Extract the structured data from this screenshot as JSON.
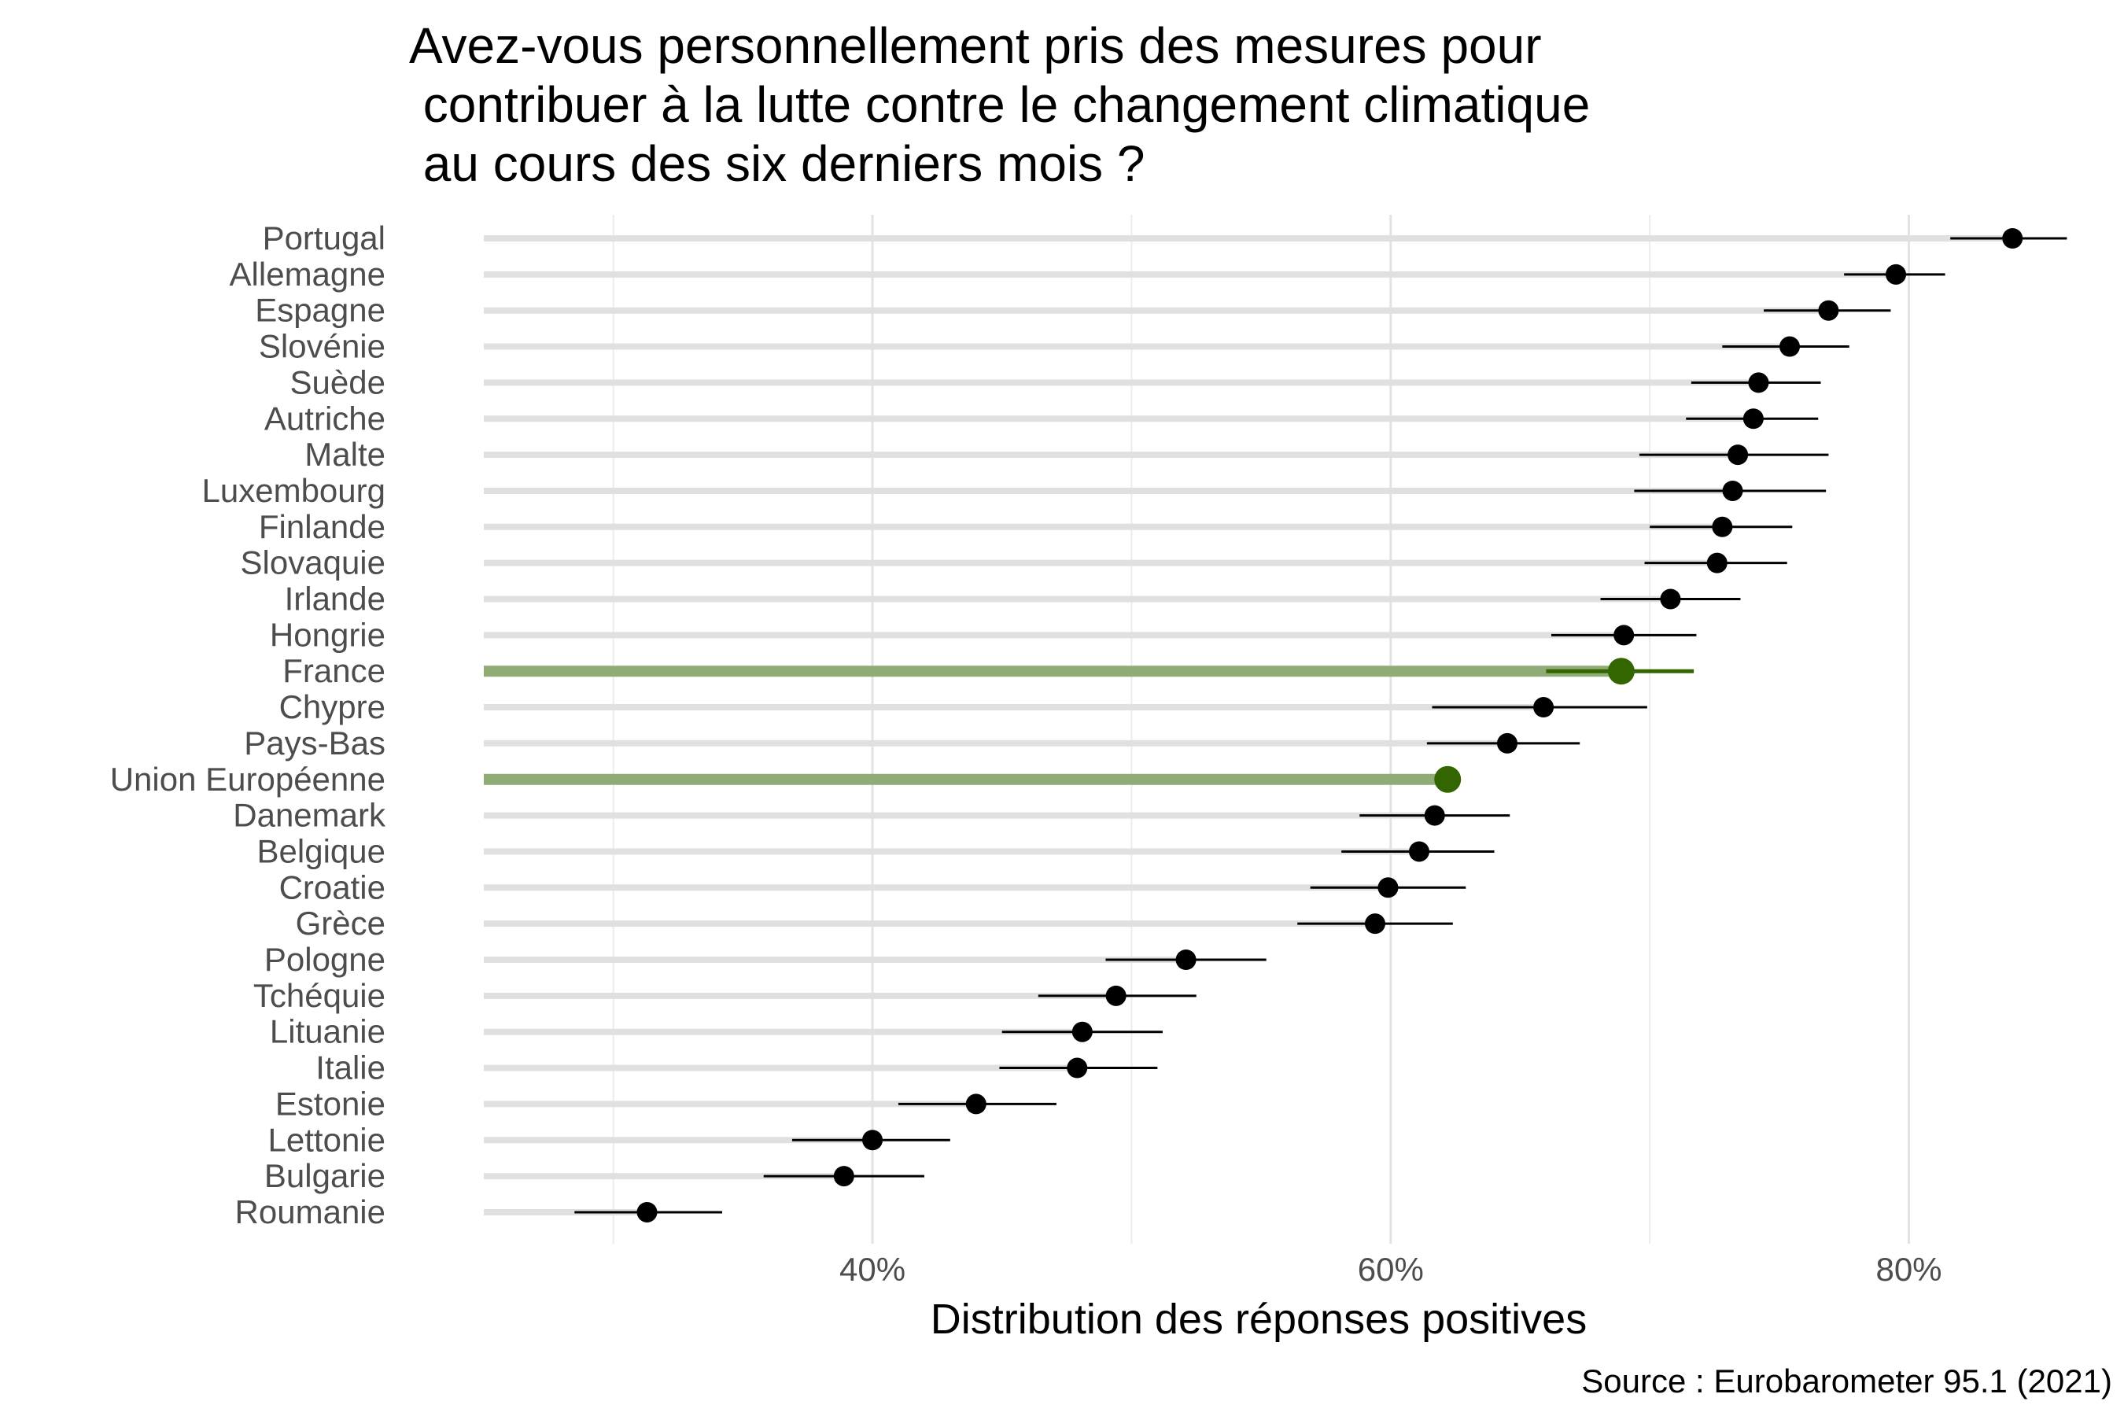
{
  "chart_data": {
    "type": "dot-errorbar",
    "title_lines": [
      "Avez-vous personnellement pris des mesures pour",
      " contribuer à la lutte contre le changement climatique",
      " au cours des six derniers mois ?"
    ],
    "xlabel": "Distribution des réponses positives",
    "caption": "Source : Eurobarometer 95.1 (2021)",
    "x_ticks": [
      {
        "value": 40,
        "label": "40%"
      },
      {
        "value": 60,
        "label": "60%"
      },
      {
        "value": 80,
        "label": "80%"
      }
    ],
    "xlim": [
      25,
      88
    ],
    "grid": true,
    "highlight_color": "#336600",
    "highlight_bar_color": "#8fac76",
    "point_color": "#000000",
    "track_color": "#e0e0e0",
    "categories": [
      {
        "name": "Portugal",
        "value": 84.0,
        "low": 81.6,
        "high": 86.1
      },
      {
        "name": "Allemagne",
        "value": 79.5,
        "low": 77.5,
        "high": 81.4
      },
      {
        "name": "Espagne",
        "value": 76.9,
        "low": 74.4,
        "high": 79.3
      },
      {
        "name": "Slovénie",
        "value": 75.4,
        "low": 72.8,
        "high": 77.7
      },
      {
        "name": "Suède",
        "value": 74.2,
        "low": 71.6,
        "high": 76.6
      },
      {
        "name": "Autriche",
        "value": 74.0,
        "low": 71.4,
        "high": 76.5
      },
      {
        "name": "Malte",
        "value": 73.4,
        "low": 69.6,
        "high": 76.9
      },
      {
        "name": "Luxembourg",
        "value": 73.2,
        "low": 69.4,
        "high": 76.8
      },
      {
        "name": "Finlande",
        "value": 72.8,
        "low": 70.0,
        "high": 75.5
      },
      {
        "name": "Slovaquie",
        "value": 72.6,
        "low": 69.8,
        "high": 75.3
      },
      {
        "name": "Irlande",
        "value": 70.8,
        "low": 68.1,
        "high": 73.5
      },
      {
        "name": "Hongrie",
        "value": 69.0,
        "low": 66.2,
        "high": 71.8
      },
      {
        "name": "France",
        "value": 68.9,
        "low": 66.0,
        "high": 71.7,
        "highlight": true
      },
      {
        "name": "Chypre",
        "value": 65.9,
        "low": 61.6,
        "high": 69.9
      },
      {
        "name": "Pays-Bas",
        "value": 64.5,
        "low": 61.4,
        "high": 67.3
      },
      {
        "name": "Union Européenne",
        "value": 62.2,
        "highlight": true
      },
      {
        "name": "Danemark",
        "value": 61.7,
        "low": 58.8,
        "high": 64.6
      },
      {
        "name": "Belgique",
        "value": 61.1,
        "low": 58.1,
        "high": 64.0
      },
      {
        "name": "Croatie",
        "value": 59.9,
        "low": 56.9,
        "high": 62.9
      },
      {
        "name": "Grèce",
        "value": 59.4,
        "low": 56.4,
        "high": 62.4
      },
      {
        "name": "Pologne",
        "value": 52.1,
        "low": 49.0,
        "high": 55.2
      },
      {
        "name": "Tchéquie",
        "value": 49.4,
        "low": 46.4,
        "high": 52.5
      },
      {
        "name": "Lituanie",
        "value": 48.1,
        "low": 45.0,
        "high": 51.2
      },
      {
        "name": "Italie",
        "value": 47.9,
        "low": 44.9,
        "high": 51.0
      },
      {
        "name": "Estonie",
        "value": 44.0,
        "low": 41.0,
        "high": 47.1
      },
      {
        "name": "Lettonie",
        "value": 40.0,
        "low": 36.9,
        "high": 43.0
      },
      {
        "name": "Bulgarie",
        "value": 38.9,
        "low": 35.8,
        "high": 42.0
      },
      {
        "name": "Roumanie",
        "value": 31.3,
        "low": 28.5,
        "high": 34.2
      }
    ]
  }
}
